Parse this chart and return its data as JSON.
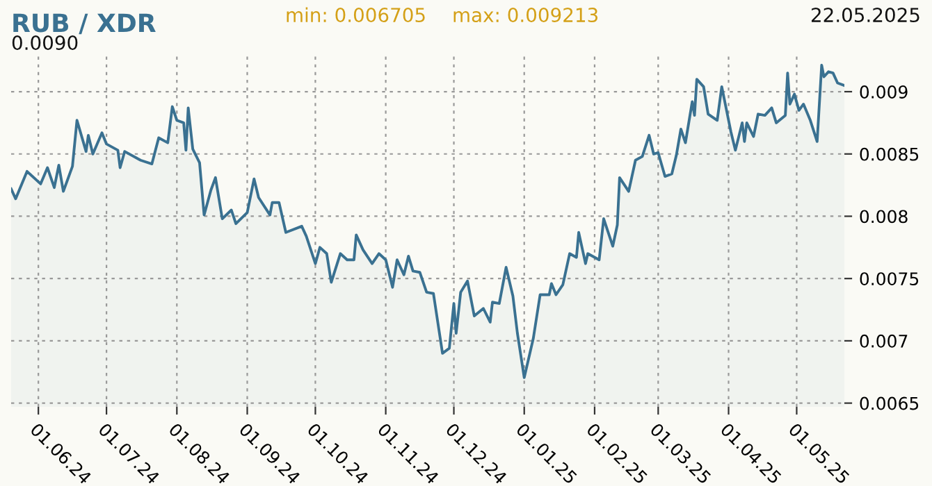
{
  "chart_data": {
    "type": "area",
    "title": "RUB / XDR",
    "annotations": [
      "min: 0.006705",
      "max: 0.009213",
      "22.05.2025",
      "0.0090"
    ],
    "x": [
      "2024-05-20",
      "2024-05-22",
      "2024-05-27",
      "2024-06-02",
      "2024-06-05",
      "2024-06-08",
      "2024-06-10",
      "2024-06-12",
      "2024-06-16",
      "2024-06-18",
      "2024-06-22",
      "2024-06-23",
      "2024-06-25",
      "2024-06-29",
      "2024-07-01",
      "2024-07-06",
      "2024-07-07",
      "2024-07-09",
      "2024-07-16",
      "2024-07-21",
      "2024-07-24",
      "2024-07-28",
      "2024-07-30",
      "2024-08-01",
      "2024-08-04",
      "2024-08-05",
      "2024-08-06",
      "2024-08-08",
      "2024-08-11",
      "2024-08-13",
      "2024-08-16",
      "2024-08-18",
      "2024-08-21",
      "2024-08-25",
      "2024-08-27",
      "2024-09-01",
      "2024-09-04",
      "2024-09-06",
      "2024-09-11",
      "2024-09-12",
      "2024-09-15",
      "2024-09-18",
      "2024-09-25",
      "2024-09-27",
      "2024-10-01",
      "2024-10-03",
      "2024-10-06",
      "2024-10-08",
      "2024-10-12",
      "2024-10-15",
      "2024-10-18",
      "2024-10-19",
      "2024-10-22",
      "2024-10-26",
      "2024-10-29",
      "2024-11-01",
      "2024-11-04",
      "2024-11-06",
      "2024-11-09",
      "2024-11-11",
      "2024-11-13",
      "2024-11-16",
      "2024-11-19",
      "2024-11-22",
      "2024-11-26",
      "2024-11-29",
      "2024-12-01",
      "2024-12-02",
      "2024-12-04",
      "2024-12-07",
      "2024-12-10",
      "2024-12-14",
      "2024-12-17",
      "2024-12-18",
      "2024-12-21",
      "2024-12-24",
      "2024-12-27",
      "2024-12-29",
      "2025-01-01",
      "2025-01-05",
      "2025-01-08",
      "2025-01-12",
      "2025-01-13",
      "2025-01-15",
      "2025-01-18",
      "2025-01-21",
      "2025-01-24",
      "2025-01-25",
      "2025-01-28",
      "2025-01-29",
      "2025-02-03",
      "2025-02-05",
      "2025-02-09",
      "2025-02-11",
      "2025-02-12",
      "2025-02-16",
      "2025-02-19",
      "2025-02-22",
      "2025-02-25",
      "2025-02-27",
      "2025-03-01",
      "2025-03-04",
      "2025-03-07",
      "2025-03-09",
      "2025-03-11",
      "2025-03-13",
      "2025-03-16",
      "2025-03-17",
      "2025-03-18",
      "2025-03-21",
      "2025-03-23",
      "2025-03-27",
      "2025-03-29",
      "2025-04-02",
      "2025-04-04",
      "2025-04-07",
      "2025-04-08",
      "2025-04-09",
      "2025-04-12",
      "2025-04-14",
      "2025-04-17",
      "2025-04-20",
      "2025-04-22",
      "2025-04-26",
      "2025-04-27",
      "2025-04-28",
      "2025-04-30",
      "2025-05-02",
      "2025-05-04",
      "2025-05-07",
      "2025-05-10",
      "2025-05-12",
      "2025-05-13",
      "2025-05-15",
      "2025-05-17",
      "2025-05-19",
      "2025-05-22"
    ],
    "series": [
      {
        "color": "#3a7191",
        "values": [
          0.00822,
          0.00814,
          0.00836,
          0.00826,
          0.00839,
          0.00823,
          0.00841,
          0.0082,
          0.0084,
          0.00877,
          0.00852,
          0.00865,
          0.0085,
          0.00867,
          0.00858,
          0.00853,
          0.00839,
          0.00852,
          0.00845,
          0.00842,
          0.00863,
          0.00859,
          0.00888,
          0.00877,
          0.00875,
          0.00853,
          0.00887,
          0.00854,
          0.00843,
          0.00801,
          0.00821,
          0.00831,
          0.00798,
          0.00805,
          0.00794,
          0.00803,
          0.0083,
          0.00815,
          0.00801,
          0.00811,
          0.00811,
          0.00787,
          0.00792,
          0.00784,
          0.00762,
          0.00775,
          0.0077,
          0.00747,
          0.0077,
          0.00765,
          0.00765,
          0.00785,
          0.00773,
          0.00762,
          0.0077,
          0.00765,
          0.00743,
          0.00765,
          0.00753,
          0.00768,
          0.00756,
          0.00755,
          0.00739,
          0.00738,
          0.0069,
          0.00694,
          0.0073,
          0.00706,
          0.00739,
          0.00748,
          0.0072,
          0.00726,
          0.00715,
          0.00731,
          0.0073,
          0.00759,
          0.00736,
          0.00706,
          0.006705,
          0.00702,
          0.00737,
          0.00737,
          0.00746,
          0.00737,
          0.00745,
          0.0077,
          0.00767,
          0.00787,
          0.00762,
          0.0077,
          0.00765,
          0.00798,
          0.00776,
          0.00793,
          0.00831,
          0.0082,
          0.00845,
          0.00848,
          0.00865,
          0.0085,
          0.00851,
          0.00832,
          0.00834,
          0.00849,
          0.0087,
          0.00859,
          0.00892,
          0.00881,
          0.0091,
          0.00904,
          0.00882,
          0.00877,
          0.00904,
          0.00868,
          0.00853,
          0.00875,
          0.0086,
          0.00875,
          0.00864,
          0.00882,
          0.00881,
          0.00887,
          0.00875,
          0.00881,
          0.00915,
          0.0089,
          0.00898,
          0.00885,
          0.0089,
          0.00877,
          0.0086,
          0.009213,
          0.00912,
          0.00916,
          0.00915,
          0.00907,
          0.00905
        ]
      }
    ],
    "xlim": [
      "2024-05-20",
      "2025-05-22"
    ],
    "xticks": [
      {
        "value": "2024-06-01",
        "label": "01.06.24"
      },
      {
        "value": "2024-07-01",
        "label": "01.07.24"
      },
      {
        "value": "2024-08-01",
        "label": "01.08.24"
      },
      {
        "value": "2024-09-01",
        "label": "01.09.24"
      },
      {
        "value": "2024-10-01",
        "label": "01.10.24"
      },
      {
        "value": "2024-11-01",
        "label": "01.11.24"
      },
      {
        "value": "2024-12-01",
        "label": "01.12.24"
      },
      {
        "value": "2025-01-01",
        "label": "01.01.25"
      },
      {
        "value": "2025-02-01",
        "label": "01.02.25"
      },
      {
        "value": "2025-03-01",
        "label": "01.03.25"
      },
      {
        "value": "2025-04-01",
        "label": "01.04.25"
      },
      {
        "value": "2025-05-01",
        "label": "01.05.25"
      }
    ],
    "ylim": [
      0.00647,
      0.00929
    ],
    "yticks": [
      0.0065,
      0.007,
      0.0075,
      0.008,
      0.0085,
      0.009
    ],
    "grid": true,
    "legend": false,
    "marker": "none",
    "line_style": "solid"
  }
}
